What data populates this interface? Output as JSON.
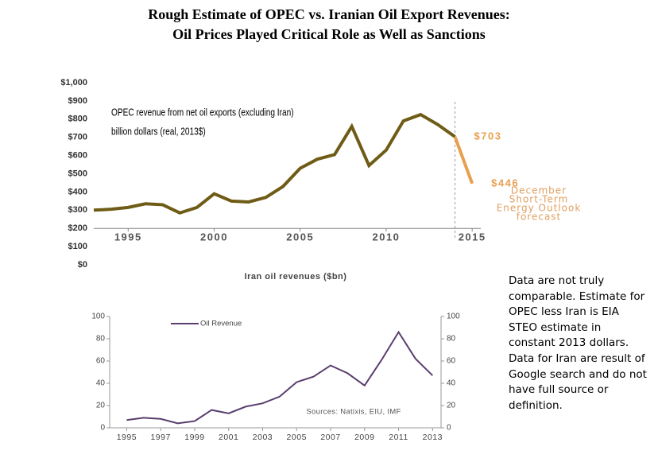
{
  "title": [
    "Rough Estimate of OPEC vs. Iranian Oil Export Revenues:",
    "Oil Prices Played Critical Role as Well as Sanctions"
  ],
  "note": "Data are not truly comparable. Estimate for OPEC less Iran is EIA STEO estimate in constant 2013 dollars. Data for Iran are result of Google search and do not have full source or definition.",
  "chart_data": [
    {
      "type": "line",
      "annotations": [
        "OPEC revenue from net oil exports (excluding Iran)",
        "billion dollars (real, 2013$)",
        "December",
        "Short-Term",
        "Energy Outlook",
        "forecast"
      ],
      "x": [
        1993,
        1994,
        1995,
        1996,
        1997,
        1998,
        1999,
        2000,
        2001,
        2002,
        2003,
        2004,
        2005,
        2006,
        2007,
        2008,
        2009,
        2010,
        2011,
        2012,
        2013,
        2014,
        2015
      ],
      "series": [
        {
          "color": "#6e5c16",
          "values": [
            300,
            305,
            315,
            335,
            330,
            285,
            315,
            390,
            350,
            345,
            370,
            430,
            530,
            580,
            605,
            760,
            545,
            630,
            790,
            825,
            770,
            703,
            null
          ]
        },
        {
          "color": "#e8a050",
          "values": [
            null,
            null,
            null,
            null,
            null,
            null,
            null,
            null,
            null,
            null,
            null,
            null,
            null,
            null,
            null,
            null,
            null,
            null,
            null,
            null,
            null,
            703,
            446
          ],
          "value_labels": [
            null,
            null,
            null,
            null,
            null,
            null,
            null,
            null,
            null,
            null,
            null,
            null,
            null,
            null,
            null,
            null,
            null,
            null,
            null,
            null,
            null,
            "$703",
            "$446"
          ]
        }
      ],
      "xlim": [
        1993,
        2015.5
      ],
      "xticks": [
        1995,
        2000,
        2005,
        2010,
        2015
      ],
      "ylim": [
        0,
        1000
      ],
      "yticks": [
        {
          "value": 0,
          "label": "$0"
        },
        {
          "value": 100,
          "label": "$100"
        },
        {
          "value": 200,
          "label": "$200"
        },
        {
          "value": 300,
          "label": "$300"
        },
        {
          "value": 400,
          "label": "$400"
        },
        {
          "value": 500,
          "label": "$500"
        },
        {
          "value": 600,
          "label": "$600"
        },
        {
          "value": 700,
          "label": "$700"
        },
        {
          "value": 800,
          "label": "$800"
        },
        {
          "value": 900,
          "label": "$900"
        },
        {
          "value": 1000,
          "label": "$1,000"
        }
      ],
      "x_axis_crossing": 200,
      "forecast_start": 2014
    },
    {
      "type": "line",
      "title": "Iran oil revenues ($bn)",
      "annotations": [
        "Sources: Natixis, EIU, IMF"
      ],
      "x": [
        1995,
        1996,
        1997,
        1998,
        1999,
        2000,
        2001,
        2002,
        2003,
        2004,
        2005,
        2006,
        2007,
        2008,
        2009,
        2010,
        2011,
        2012,
        2013
      ],
      "series": [
        {
          "name": "Oil Revenue",
          "color": "#5a3e6e",
          "values": [
            7,
            9,
            8,
            4,
            6,
            16,
            13,
            19,
            22,
            28,
            41,
            46,
            56,
            49,
            38,
            61,
            86,
            62,
            47
          ]
        }
      ],
      "xlim": [
        1994,
        2013.5
      ],
      "xticks": [
        1995,
        1997,
        1999,
        2001,
        2003,
        2005,
        2007,
        2009,
        2011,
        2013
      ],
      "ylim": [
        0,
        100
      ],
      "yticks": [
        0,
        20,
        40,
        60,
        80,
        100
      ],
      "y2lim": [
        0,
        100
      ],
      "y2ticks": [
        0,
        20,
        40,
        60,
        80,
        100
      ],
      "legend": "top-left"
    }
  ]
}
